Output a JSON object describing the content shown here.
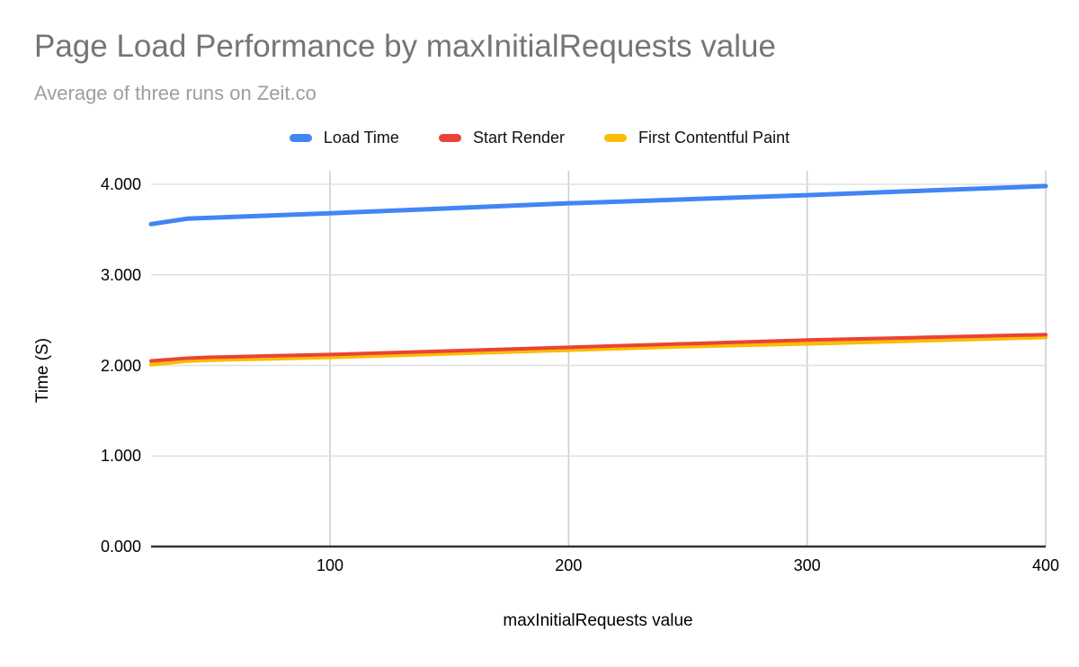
{
  "header": {
    "title": "Page Load Performance by maxInitialRequests value",
    "subtitle": "Average of three runs on Zeit.co"
  },
  "chart_data": {
    "type": "line",
    "title": "Page Load Performance by maxInitialRequests value",
    "subtitle": "Average of three runs on Zeit.co",
    "xlabel": "maxInitialRequests value",
    "ylabel": "Time (S)",
    "xlim": [
      25,
      400
    ],
    "ylim": [
      0,
      4
    ],
    "grid": true,
    "legend_position": "top-center",
    "x_ticks": [
      100,
      200,
      300,
      400
    ],
    "x_tick_labels": [
      "100",
      "200",
      "300",
      "400"
    ],
    "y_ticks": [
      0,
      1,
      2,
      3,
      4
    ],
    "y_tick_labels": [
      "0.000",
      "1.000",
      "2.000",
      "3.000",
      "4.000"
    ],
    "x": [
      25,
      40,
      50,
      75,
      100,
      150,
      200,
      250,
      300,
      350,
      400
    ],
    "series": [
      {
        "name": "Load Time",
        "color": "#4285F4",
        "stroke_width": 5,
        "values": [
          3.56,
          3.62,
          3.63,
          3.655,
          3.68,
          3.735,
          3.79,
          3.835,
          3.88,
          3.93,
          3.98
        ]
      },
      {
        "name": "Start Render",
        "color": "#EA4335",
        "stroke_width": 4,
        "values": [
          2.05,
          2.08,
          2.09,
          2.105,
          2.12,
          2.16,
          2.2,
          2.24,
          2.28,
          2.31,
          2.34
        ]
      },
      {
        "name": "First Contentful Paint",
        "color": "#FBBC04",
        "stroke_width": 4.5,
        "values": [
          2.01,
          2.05,
          2.06,
          2.075,
          2.09,
          2.13,
          2.17,
          2.21,
          2.24,
          2.275,
          2.31
        ]
      }
    ],
    "style": {
      "h_gridline_color": "#e0e0e0",
      "v_gridline_color": "#cccccc",
      "baseline_color": "#333333"
    }
  }
}
